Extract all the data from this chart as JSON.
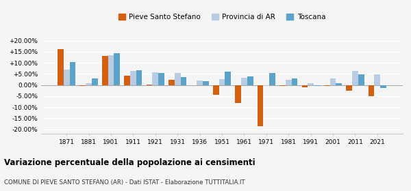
{
  "years": [
    1871,
    1881,
    1901,
    1911,
    1921,
    1931,
    1936,
    1951,
    1961,
    1971,
    1981,
    1991,
    2001,
    2011,
    2021
  ],
  "pieve": [
    16.2,
    -0.5,
    13.0,
    4.3,
    0.3,
    2.3,
    0,
    -4.5,
    -8.0,
    -18.5,
    -0.5,
    -1.0,
    -0.5,
    -2.5,
    -5.2
  ],
  "pieve_missing": [
    false,
    false,
    false,
    false,
    false,
    false,
    true,
    false,
    false,
    false,
    false,
    false,
    false,
    false,
    false
  ],
  "provincia": [
    7.0,
    0.8,
    13.5,
    6.2,
    5.7,
    5.5,
    2.0,
    2.8,
    3.2,
    -0.3,
    2.2,
    0.8,
    3.0,
    6.2,
    4.8
  ],
  "toscana": [
    10.5,
    3.0,
    14.5,
    6.7,
    5.3,
    3.7,
    1.8,
    6.0,
    4.0,
    5.5,
    3.0,
    -0.5,
    0.8,
    4.8,
    -1.5
  ],
  "color_pieve": "#d45f10",
  "color_provincia": "#b8cce4",
  "color_toscana": "#5ba3c9",
  "title": "Variazione percentuale della popolazione ai censimenti",
  "subtitle": "COMUNE DI PIEVE SANTO STEFANO (AR) - Dati ISTAT - Elaborazione TUTTITALIA.IT",
  "ylim": [
    -22,
    22
  ],
  "yticks": [
    -20,
    -15,
    -10,
    -5,
    0,
    5,
    10,
    15,
    20
  ],
  "bg_color": "#f5f5f5",
  "legend_labels": [
    "Pieve Santo Stefano",
    "Provincia di AR",
    "Toscana"
  ]
}
